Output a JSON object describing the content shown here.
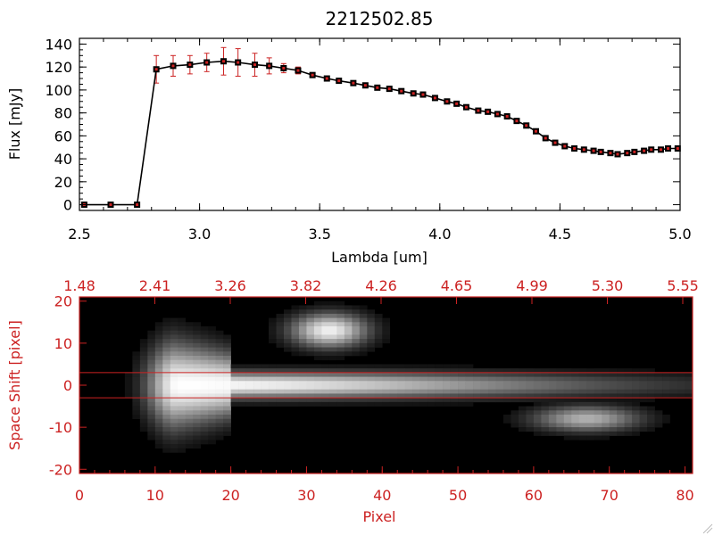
{
  "title": "2212502.85",
  "colors": {
    "accent": "#cc2222",
    "line": "#000000",
    "error": "#cc2222"
  },
  "chart_data": [
    {
      "type": "line",
      "xlabel": "Lambda [um]",
      "ylabel": "Flux [mJy]",
      "xlim": [
        2.5,
        5.0
      ],
      "ylim": [
        -5,
        145
      ],
      "xticks": [
        "2.5",
        "3.0",
        "3.5",
        "4.0",
        "4.5",
        "5.0"
      ],
      "yticks": [
        "0",
        "20",
        "40",
        "60",
        "80",
        "100",
        "120",
        "140"
      ],
      "x": [
        2.52,
        2.63,
        2.74,
        2.82,
        2.89,
        2.96,
        3.03,
        3.1,
        3.16,
        3.23,
        3.29,
        3.35,
        3.41,
        3.47,
        3.53,
        3.58,
        3.64,
        3.69,
        3.74,
        3.79,
        3.84,
        3.89,
        3.93,
        3.98,
        4.03,
        4.07,
        4.11,
        4.16,
        4.2,
        4.24,
        4.28,
        4.32,
        4.36,
        4.4,
        4.44,
        4.48,
        4.52,
        4.56,
        4.6,
        4.64,
        4.67,
        4.71,
        4.74,
        4.78,
        4.81,
        4.85,
        4.88,
        4.92,
        4.95,
        4.99
      ],
      "y": [
        0,
        0,
        0,
        118,
        121,
        122,
        124,
        125,
        124,
        122,
        121,
        119,
        117,
        113,
        110,
        108,
        106,
        104,
        102,
        101,
        99,
        97,
        96,
        93,
        90,
        88,
        85,
        82,
        81,
        79,
        77,
        73,
        69,
        64,
        58,
        54,
        51,
        49,
        48,
        47,
        46,
        45,
        44,
        45,
        46,
        47,
        48,
        48,
        49,
        49
      ],
      "yerr": [
        0,
        0,
        0,
        12,
        9,
        8,
        8,
        12,
        12,
        10,
        7,
        4,
        3,
        2,
        2,
        2,
        2,
        2,
        2,
        2,
        2,
        2,
        2,
        2,
        2,
        2,
        2,
        2,
        2,
        2,
        2,
        2,
        2,
        2,
        2,
        2,
        2,
        2,
        2,
        2,
        2,
        2,
        2,
        2,
        2,
        2,
        2,
        2,
        2,
        2
      ]
    },
    {
      "type": "heatmap",
      "xlabel": "Pixel",
      "ylabel": "Space Shift [pixel]",
      "xlim": [
        0,
        81
      ],
      "ylim": [
        -21,
        21
      ],
      "xticks": [
        "0",
        "10",
        "20",
        "30",
        "40",
        "50",
        "60",
        "70",
        "80"
      ],
      "yticks": [
        "-20",
        "-10",
        "0",
        "10",
        "20"
      ],
      "top_ticks": [
        "1.48",
        "2.41",
        "3.26",
        "3.82",
        "4.26",
        "4.65",
        "4.99",
        "5.30",
        "5.55"
      ],
      "extraction_lines": [
        3,
        -3
      ],
      "features": [
        {
          "x_center": 13,
          "y_center": 0,
          "x_extent": 70,
          "y_extent": 3,
          "peak": 1.0
        },
        {
          "x_center": 33,
          "y_center": 13,
          "x_extent": 5,
          "y_extent": 4,
          "peak": 0.95
        },
        {
          "x_center": 67,
          "y_center": -8,
          "x_extent": 7,
          "y_extent": 3,
          "peak": 0.7
        }
      ]
    }
  ]
}
